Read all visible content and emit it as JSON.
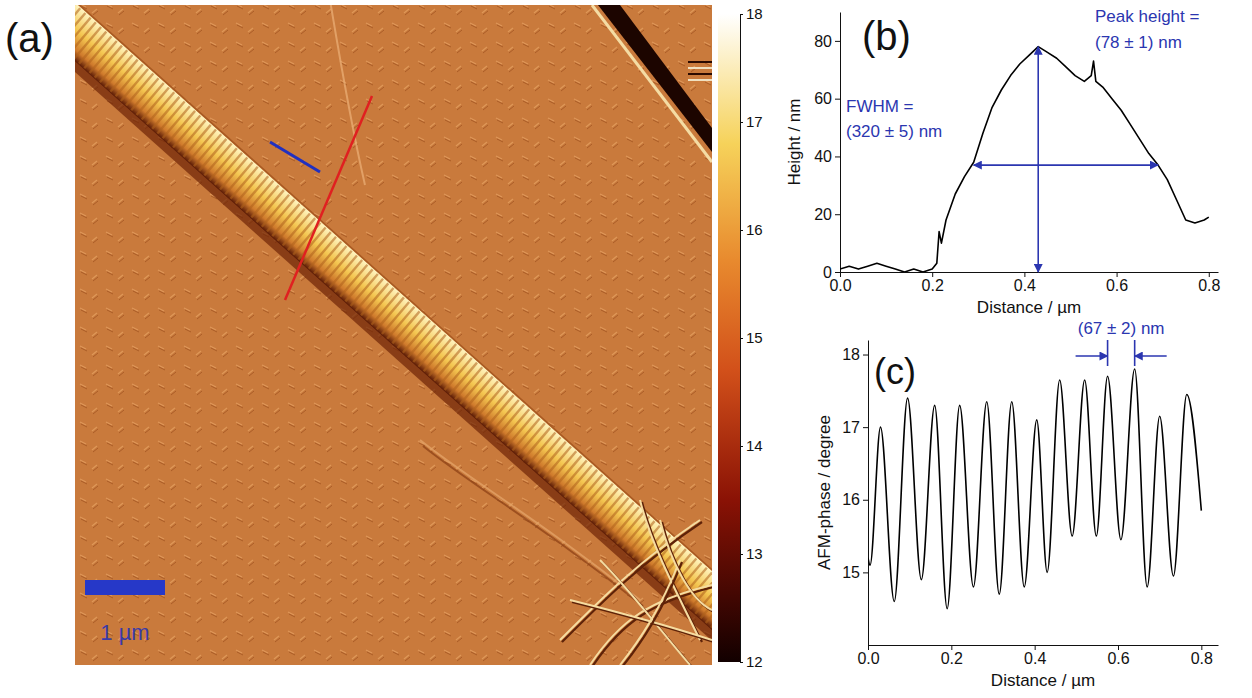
{
  "chart_data": [
    {
      "type": "image",
      "title": "(a)",
      "colorbar": {
        "range": [
          12,
          18
        ],
        "ticks": [
          12,
          13,
          14,
          15,
          16,
          17,
          18
        ]
      },
      "scale_bar": {
        "length": 1,
        "label": "1 µm"
      }
    },
    {
      "type": "line",
      "title": "(b)",
      "x_label": "Distance / µm",
      "y_label": "Height / nm",
      "color": "#000000",
      "x": [
        0,
        0.02,
        0.04,
        0.06,
        0.08,
        0.1,
        0.12,
        0.14,
        0.16,
        0.18,
        0.2,
        0.21,
        0.215,
        0.22,
        0.23,
        0.25,
        0.27,
        0.29,
        0.31,
        0.33,
        0.35,
        0.37,
        0.39,
        0.41,
        0.43,
        0.45,
        0.47,
        0.49,
        0.51,
        0.53,
        0.545,
        0.55,
        0.555,
        0.57,
        0.59,
        0.61,
        0.63,
        0.65,
        0.67,
        0.69,
        0.71,
        0.73,
        0.75,
        0.77,
        0.79,
        0.8
      ],
      "values": [
        1,
        2,
        1,
        2,
        3,
        2,
        1,
        0,
        1,
        0,
        1,
        3,
        14,
        10,
        18,
        27,
        33,
        38,
        48,
        57,
        63,
        68,
        72,
        75,
        78,
        76,
        74,
        71,
        68,
        66,
        68,
        73,
        66,
        64,
        60,
        56,
        51,
        46,
        41,
        37,
        32,
        25,
        18,
        17,
        18,
        19
      ],
      "xlim": [
        0,
        0.82
      ],
      "xticks": [
        {
          "value": 0,
          "label": "0.0"
        },
        0.2,
        0.4,
        0.6,
        0.8
      ],
      "ylim": [
        0,
        90
      ],
      "yticks": [
        0,
        20,
        40,
        60,
        80
      ],
      "annotations": [
        {
          "text": [
            "Peak height =",
            "(78 ± 1) nm"
          ],
          "color": "#2b36b0",
          "arrow": {
            "x": [
              0.43,
              0.43
            ],
            "y": [
              0,
              78
            ]
          }
        },
        {
          "text": [
            "FWHM =",
            "(320 ± 5) nm"
          ],
          "color": "#2b36b0",
          "arrow": {
            "x": [
              0.29,
              0.69
            ],
            "y": [
              37,
              37
            ]
          }
        }
      ]
    },
    {
      "type": "line",
      "title": "(c)",
      "x_label": "Distance / µm",
      "y_label": "AFM-phase / degree",
      "color": "#000000",
      "x": [
        0,
        0.005,
        0.03,
        0.063,
        0.095,
        0.128,
        0.16,
        0.19,
        0.22,
        0.253,
        0.285,
        0.315,
        0.345,
        0.375,
        0.405,
        0.43,
        0.46,
        0.49,
        0.52,
        0.548,
        0.575,
        0.607,
        0.64,
        0.67,
        0.7,
        0.733,
        0.765,
        0.8
      ],
      "values": [
        15.2,
        15.1,
        17.0,
        14.6,
        17.4,
        14.9,
        17.3,
        14.5,
        17.3,
        14.8,
        17.35,
        14.7,
        17.35,
        14.8,
        17.1,
        15.0,
        17.65,
        15.5,
        17.65,
        15.5,
        17.7,
        15.45,
        17.8,
        14.8,
        17.15,
        14.95,
        17.45,
        15.85
      ],
      "xlim": [
        0,
        0.84
      ],
      "xticks": [
        {
          "value": 0,
          "label": "0.0"
        },
        0.2,
        0.4,
        0.6,
        0.8
      ],
      "ylim": [
        14,
        18.2
      ],
      "yticks": [
        15,
        16,
        17,
        18
      ],
      "annotations": [
        {
          "text": [
            "(67 ± 2) nm"
          ],
          "color": "#2b36b0",
          "arrow": {
            "x": [
              0.575,
              0.64
            ]
          }
        }
      ]
    }
  ]
}
